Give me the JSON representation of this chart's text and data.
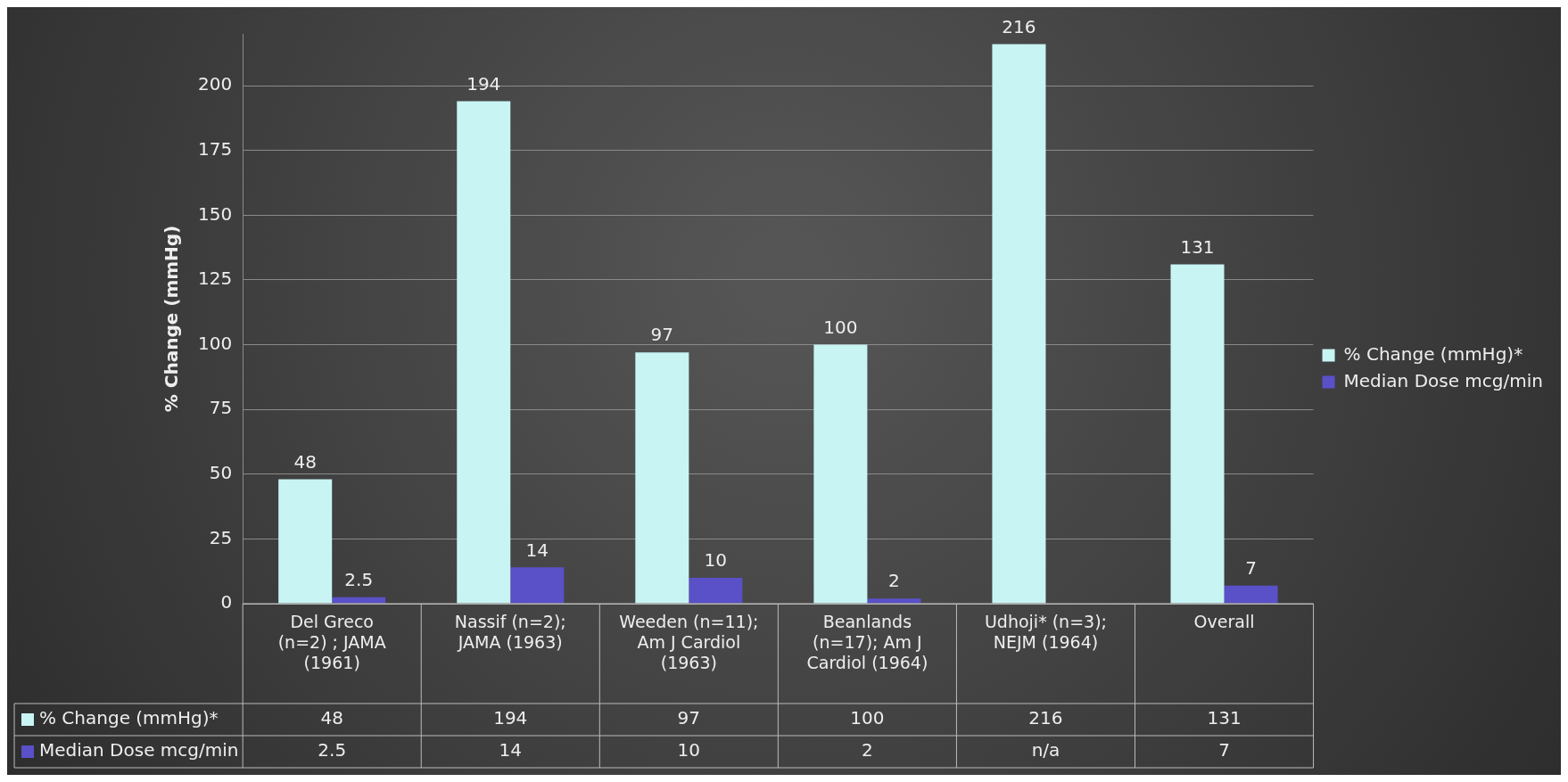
{
  "chart_data": {
    "type": "bar",
    "ylabel": "% Change (mmHg)",
    "categories": [
      "Del Greco (n=2) ; JAMA (1961)",
      "Nassif (n=2); JAMA (1963)",
      "Weeden (n=11); Am J Cardiol (1963)",
      "Beanlands (n=17); Am J Cardiol (1964)",
      "Udhoji* (n=3); NEJM (1964)",
      "Overall"
    ],
    "series": [
      {
        "name": "% Change (mmHg)*",
        "color": "#c8f4f4",
        "values": [
          48,
          194,
          97,
          100,
          216,
          131
        ],
        "value_labels": [
          "48",
          "194",
          "97",
          "100",
          "216",
          "131"
        ]
      },
      {
        "name": "Median Dose mcg/min",
        "color": "#5a50c8",
        "values": [
          2.5,
          14,
          10,
          2,
          null,
          7
        ],
        "value_labels": [
          "2.5",
          "14",
          "10",
          "2",
          "n/a",
          "7"
        ]
      }
    ],
    "ylim": [
      0,
      220
    ],
    "yticks": [
      0,
      25,
      50,
      75,
      100,
      125,
      150,
      175,
      200
    ],
    "grid": "y",
    "legend": "right",
    "data_labels": true
  }
}
